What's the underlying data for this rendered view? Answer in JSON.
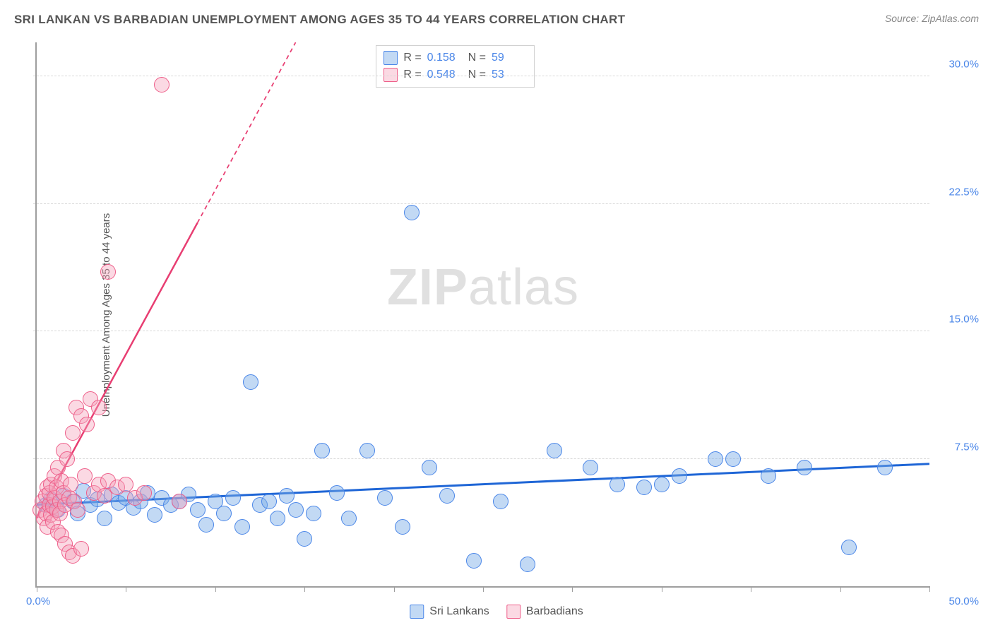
{
  "title": "SRI LANKAN VS BARBADIAN UNEMPLOYMENT AMONG AGES 35 TO 44 YEARS CORRELATION CHART",
  "source": "Source: ZipAtlas.com",
  "y_axis_label": "Unemployment Among Ages 35 to 44 years",
  "watermark_bold": "ZIP",
  "watermark_light": "atlas",
  "chart": {
    "type": "scatter",
    "xlim": [
      0,
      50
    ],
    "ylim": [
      0,
      32
    ],
    "x_min_label": "0.0%",
    "x_max_label": "50.0%",
    "y_ticks": [
      {
        "v": 7.5,
        "label": "7.5%"
      },
      {
        "v": 15.0,
        "label": "15.0%"
      },
      {
        "v": 22.5,
        "label": "22.5%"
      },
      {
        "v": 30.0,
        "label": "30.0%"
      }
    ],
    "x_tick_positions": [
      0,
      5,
      10,
      15,
      20,
      25,
      30,
      35,
      40,
      45,
      50
    ],
    "marker_radius": 10,
    "background_color": "#ffffff",
    "grid_color": "#d8d8d8",
    "axis_color": "#9e9e9e",
    "series": [
      {
        "name": "Sri Lankans",
        "color_fill": "rgba(120,170,230,0.45)",
        "color_stroke": "#4a86e8",
        "R": "0.158",
        "N": "59",
        "trend": {
          "x1": 0,
          "y1": 4.8,
          "x2": 50,
          "y2": 7.2,
          "color": "#1f66d6",
          "width": 3
        },
        "points": [
          [
            0.5,
            4.8
          ],
          [
            0.8,
            5.1
          ],
          [
            1.2,
            4.5
          ],
          [
            1.5,
            5.3
          ],
          [
            2.0,
            5.0
          ],
          [
            2.3,
            4.3
          ],
          [
            2.6,
            5.6
          ],
          [
            3.0,
            4.8
          ],
          [
            3.4,
            5.1
          ],
          [
            3.8,
            4.0
          ],
          [
            4.2,
            5.4
          ],
          [
            4.6,
            4.9
          ],
          [
            5.0,
            5.2
          ],
          [
            5.4,
            4.6
          ],
          [
            5.8,
            5.0
          ],
          [
            6.2,
            5.5
          ],
          [
            6.6,
            4.2
          ],
          [
            7.0,
            5.2
          ],
          [
            7.5,
            4.8
          ],
          [
            8.0,
            5.0
          ],
          [
            8.5,
            5.4
          ],
          [
            9.0,
            4.5
          ],
          [
            9.5,
            3.6
          ],
          [
            10.0,
            5.0
          ],
          [
            10.5,
            4.3
          ],
          [
            11.0,
            5.2
          ],
          [
            11.5,
            3.5
          ],
          [
            12.0,
            12.0
          ],
          [
            12.5,
            4.8
          ],
          [
            13.0,
            5.0
          ],
          [
            13.5,
            4.0
          ],
          [
            14.0,
            5.3
          ],
          [
            14.5,
            4.5
          ],
          [
            15.0,
            2.8
          ],
          [
            15.5,
            4.3
          ],
          [
            16.0,
            8.0
          ],
          [
            16.8,
            5.5
          ],
          [
            17.5,
            4.0
          ],
          [
            18.5,
            8.0
          ],
          [
            19.5,
            5.2
          ],
          [
            20.5,
            3.5
          ],
          [
            21.0,
            22.0
          ],
          [
            22.0,
            7.0
          ],
          [
            23.0,
            5.3
          ],
          [
            24.5,
            1.5
          ],
          [
            26.0,
            5.0
          ],
          [
            27.5,
            1.3
          ],
          [
            29.0,
            8.0
          ],
          [
            31.0,
            7.0
          ],
          [
            32.5,
            6.0
          ],
          [
            34.0,
            5.8
          ],
          [
            35.0,
            6.0
          ],
          [
            36.0,
            6.5
          ],
          [
            38.0,
            7.5
          ],
          [
            39.0,
            7.5
          ],
          [
            41.0,
            6.5
          ],
          [
            43.0,
            7.0
          ],
          [
            45.5,
            2.3
          ],
          [
            47.5,
            7.0
          ]
        ]
      },
      {
        "name": "Barbadians",
        "color_fill": "rgba(245,160,185,0.4)",
        "color_stroke": "#ee5f8a",
        "R": "0.548",
        "N": "53",
        "trend": {
          "x1": 0,
          "y1": 4.0,
          "x2": 14.5,
          "y2": 32,
          "color": "#e83e72",
          "width": 2.5,
          "dash_after_x": 9
        },
        "points": [
          [
            0.2,
            4.5
          ],
          [
            0.3,
            5.0
          ],
          [
            0.4,
            4.0
          ],
          [
            0.5,
            5.3
          ],
          [
            0.5,
            4.3
          ],
          [
            0.6,
            5.8
          ],
          [
            0.6,
            3.5
          ],
          [
            0.7,
            4.8
          ],
          [
            0.7,
            5.5
          ],
          [
            0.8,
            4.2
          ],
          [
            0.8,
            6.0
          ],
          [
            0.9,
            4.7
          ],
          [
            0.9,
            3.8
          ],
          [
            1.0,
            5.2
          ],
          [
            1.0,
            6.5
          ],
          [
            1.1,
            4.5
          ],
          [
            1.1,
            5.8
          ],
          [
            1.2,
            3.2
          ],
          [
            1.2,
            7.0
          ],
          [
            1.3,
            5.0
          ],
          [
            1.3,
            4.3
          ],
          [
            1.4,
            6.2
          ],
          [
            1.4,
            3.0
          ],
          [
            1.5,
            5.5
          ],
          [
            1.5,
            8.0
          ],
          [
            1.6,
            4.8
          ],
          [
            1.6,
            2.5
          ],
          [
            1.7,
            7.5
          ],
          [
            1.8,
            5.2
          ],
          [
            1.8,
            2.0
          ],
          [
            1.9,
            6.0
          ],
          [
            2.0,
            9.0
          ],
          [
            2.0,
            1.8
          ],
          [
            2.1,
            5.0
          ],
          [
            2.2,
            10.5
          ],
          [
            2.3,
            4.5
          ],
          [
            2.5,
            10.0
          ],
          [
            2.5,
            2.2
          ],
          [
            2.7,
            6.5
          ],
          [
            2.8,
            9.5
          ],
          [
            3.0,
            11.0
          ],
          [
            3.2,
            5.5
          ],
          [
            3.5,
            6.0
          ],
          [
            3.5,
            10.5
          ],
          [
            3.8,
            5.3
          ],
          [
            4.0,
            6.2
          ],
          [
            4.0,
            18.5
          ],
          [
            4.5,
            5.8
          ],
          [
            5.0,
            6.0
          ],
          [
            5.5,
            5.2
          ],
          [
            6.0,
            5.5
          ],
          [
            7.0,
            29.5
          ],
          [
            8.0,
            5.0
          ]
        ]
      }
    ]
  },
  "stats_box": {
    "rows": [
      {
        "swatch": "blue",
        "r_label": "R =",
        "r_val": "0.158",
        "n_label": "N =",
        "n_val": "59"
      },
      {
        "swatch": "pink",
        "r_label": "R =",
        "r_val": "0.548",
        "n_label": "N =",
        "n_val": "53"
      }
    ]
  },
  "legend": {
    "items": [
      {
        "swatch": "blue",
        "label": "Sri Lankans"
      },
      {
        "swatch": "pink",
        "label": "Barbadians"
      }
    ]
  }
}
